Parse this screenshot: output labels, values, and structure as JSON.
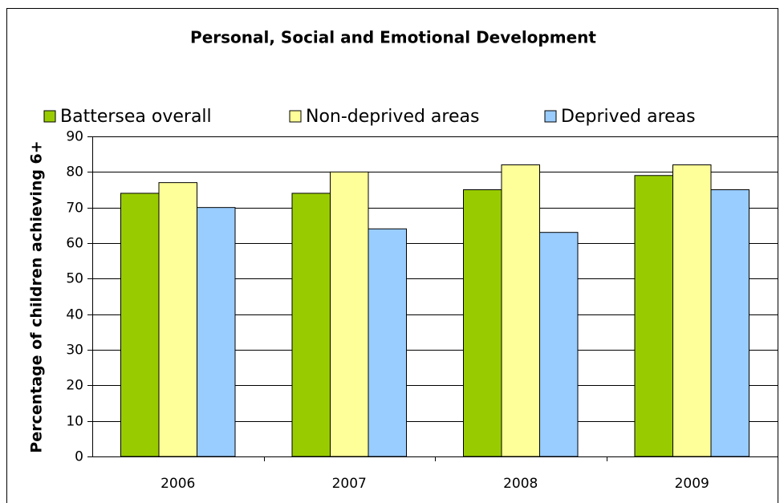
{
  "chart_data": {
    "type": "bar",
    "title": "Personal, Social and Emotional Development",
    "y_label": "Percentage of children achieving 6+",
    "categories": [
      "2006",
      "2007",
      "2008",
      "2009"
    ],
    "series": [
      {
        "name": "Battersea overall",
        "color": "#99cc00",
        "values": [
          74,
          74,
          75,
          79
        ]
      },
      {
        "name": "Non-deprived areas",
        "color": "#ffff99",
        "values": [
          77,
          80,
          82,
          82
        ]
      },
      {
        "name": "Deprived areas",
        "color": "#99ccff",
        "values": [
          70,
          64,
          63,
          75
        ]
      }
    ],
    "ylim": [
      0,
      90
    ],
    "yticks": [
      0,
      10,
      20,
      30,
      40,
      50,
      60,
      70,
      80,
      90
    ],
    "grid": true,
    "legend": "top"
  }
}
